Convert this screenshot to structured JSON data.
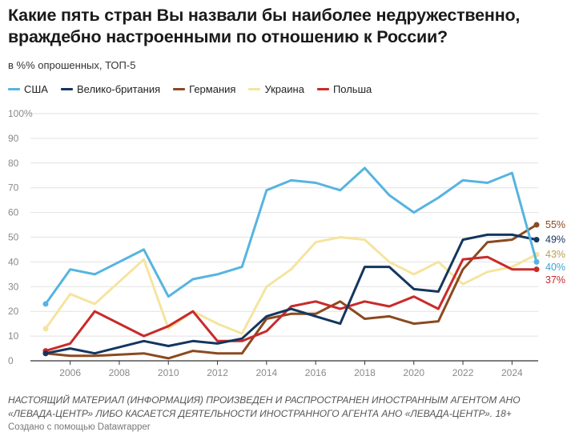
{
  "title": "Какие пять стран Вы назвали бы наиболее недружественно, враждебно настроенными по отношению к России?",
  "subtitle": "в %% опрошенных, ТОП-5",
  "notice": "НАСТОЯЩИЙ МАТЕРИАЛ (ИНФОРМАЦИЯ) ПРОИЗВЕДЕН И РАСПРОСТРАНЕН ИНОСТРАННЫМ АГЕНТОМ АНО «ЛЕВАДА-ЦЕНТР» ЛИБО КАСАЕТСЯ ДЕЯТЕЛЬНОСТИ ИНОСТРАННОГО АГЕНТА АНО «ЛЕВАДА-ЦЕНТР». 18+",
  "credit": "Создано с помощью Datawrapper",
  "chart_data": {
    "type": "line",
    "title": "Какие пять стран Вы назвали бы наиболее недружественно, враждебно настроенными по отношению к России?",
    "subtitle": "в %% опрошенных, ТОП-5",
    "x": [
      2005,
      2006,
      2007,
      2009,
      2010,
      2011,
      2012,
      2013,
      2014,
      2015,
      2016,
      2017,
      2018,
      2019,
      2020,
      2021,
      2022,
      2023,
      2024,
      2025
    ],
    "xticks": [
      "2006",
      "2008",
      "2010",
      "2012",
      "2014",
      "2016",
      "2018",
      "2020",
      "2022",
      "2024"
    ],
    "xtick_values": [
      2006,
      2008,
      2010,
      2012,
      2014,
      2016,
      2018,
      2020,
      2022,
      2024
    ],
    "yticks": [
      "0",
      "10",
      "20",
      "30",
      "40",
      "50",
      "60",
      "70",
      "80",
      "90",
      "100%"
    ],
    "ylim": [
      0,
      100
    ],
    "grid": true,
    "legend_position": "top-left",
    "series": [
      {
        "name": "США",
        "color": "#56b4e0",
        "end_label": "40%",
        "values": [
          23,
          37,
          35,
          45,
          26,
          33,
          35,
          38,
          69,
          73,
          72,
          69,
          78,
          67,
          60,
          66,
          73,
          72,
          76,
          40
        ]
      },
      {
        "name": "Велико-британия",
        "color": "#13365e",
        "end_label": "49%",
        "values": [
          3,
          5,
          3,
          8,
          6,
          8,
          7,
          9,
          18,
          21,
          18,
          15,
          38,
          38,
          29,
          28,
          49,
          51,
          51,
          49
        ]
      },
      {
        "name": "Германия",
        "color": "#8b4a1f",
        "end_label": "55%",
        "values": [
          3,
          2,
          2,
          3,
          1,
          4,
          3,
          3,
          17,
          19,
          19,
          24,
          17,
          18,
          15,
          16,
          37,
          48,
          49,
          55
        ]
      },
      {
        "name": "Украина",
        "color": "#f5e4a0",
        "end_label": "43%",
        "values": [
          13,
          27,
          23,
          41,
          13,
          20,
          15,
          11,
          30,
          37,
          48,
          50,
          49,
          40,
          35,
          40,
          31,
          36,
          38,
          43
        ]
      },
      {
        "name": "Польша",
        "color": "#c92a2a",
        "end_label": "37%",
        "values": [
          4,
          7,
          20,
          10,
          14,
          20,
          8,
          8,
          12,
          22,
          24,
          21,
          24,
          22,
          26,
          21,
          41,
          42,
          37,
          37
        ]
      }
    ],
    "end_label_colors": [
      "#3aa5d3",
      "#13365e",
      "#8b4a1f",
      "#b8a050",
      "#c92a2a"
    ]
  }
}
